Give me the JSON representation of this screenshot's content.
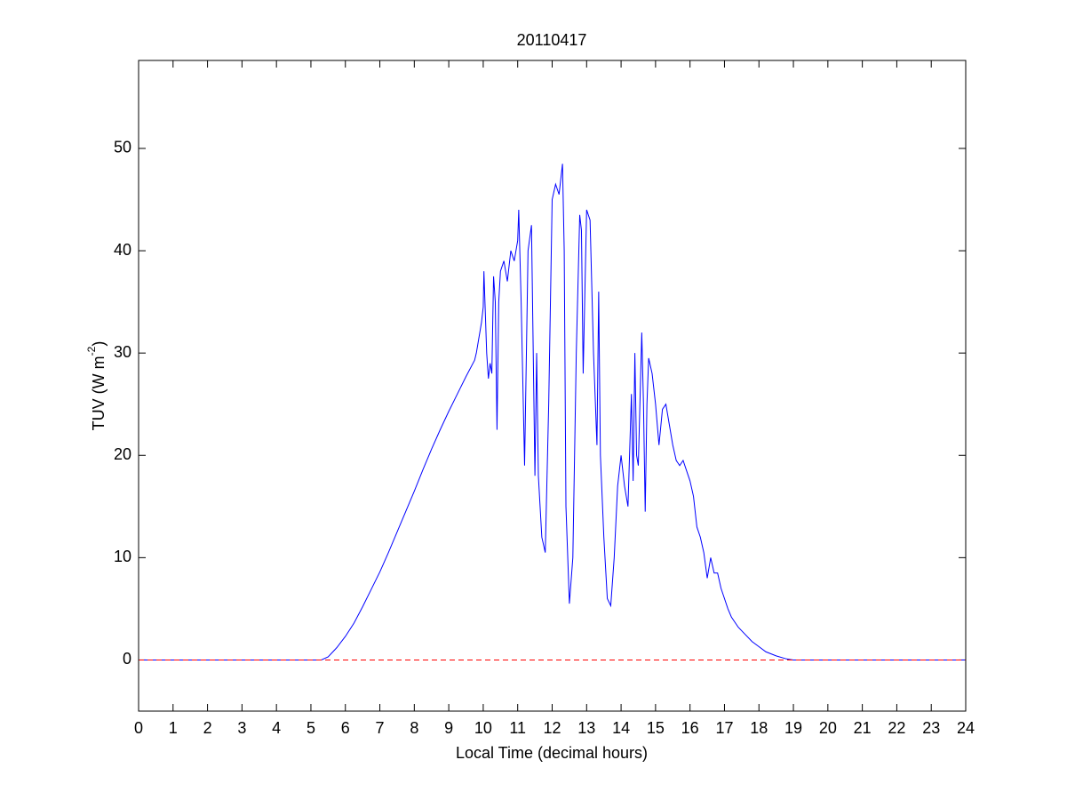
{
  "chart_data": {
    "type": "line",
    "title": "20110417",
    "xlabel": "Local Time (decimal hours)",
    "ylabel": {
      "text": "TUV (W m",
      "sup": "-2",
      "tail": ")"
    },
    "xlim": [
      0,
      24
    ],
    "ylim": [
      -5,
      58.6
    ],
    "xticks": [
      0,
      1,
      2,
      3,
      4,
      5,
      6,
      7,
      8,
      9,
      10,
      11,
      12,
      13,
      14,
      15,
      16,
      17,
      18,
      19,
      20,
      21,
      22,
      23,
      24
    ],
    "yticks": [
      0,
      10,
      20,
      30,
      40,
      50
    ],
    "reference_line": {
      "y": 0,
      "color": "#ff0000",
      "style": "dashed"
    },
    "series": [
      {
        "color": "#0000ff",
        "x": [
          0,
          5.3,
          5.5,
          5.75,
          6,
          6.25,
          6.5,
          6.75,
          7,
          7.25,
          7.5,
          7.75,
          8,
          8.25,
          8.5,
          8.75,
          9,
          9.25,
          9.5,
          9.75,
          9.8,
          9.9,
          9.95,
          10,
          10.02,
          10.06,
          10.1,
          10.15,
          10.2,
          10.25,
          10.3,
          10.35,
          10.4,
          10.45,
          10.5,
          10.6,
          10.7,
          10.8,
          10.9,
          11,
          11.03,
          11.1,
          11.2,
          11.3,
          11.4,
          11.5,
          11.55,
          11.6,
          11.7,
          11.8,
          11.9,
          12,
          12.1,
          12.2,
          12.3,
          12.35,
          12.4,
          12.5,
          12.6,
          12.7,
          12.8,
          12.85,
          12.9,
          13,
          13.1,
          13.2,
          13.3,
          13.35,
          13.4,
          13.5,
          13.6,
          13.7,
          13.8,
          13.9,
          14,
          14.1,
          14.2,
          14.3,
          14.35,
          14.4,
          14.45,
          14.5,
          14.6,
          14.65,
          14.7,
          14.75,
          14.8,
          14.9,
          15,
          15.1,
          15.2,
          15.3,
          15.4,
          15.5,
          15.6,
          15.7,
          15.8,
          15.9,
          16,
          16.1,
          16.2,
          16.3,
          16.4,
          16.5,
          16.6,
          16.7,
          16.8,
          16.9,
          17,
          17.1,
          17.2,
          17.4,
          17.6,
          17.8,
          18,
          18.2,
          18.5,
          18.8,
          19,
          24
        ],
        "values": [
          0,
          0,
          0.3,
          1.2,
          2.3,
          3.6,
          5.2,
          6.9,
          8.6,
          10.5,
          12.5,
          14.5,
          16.5,
          18.6,
          20.6,
          22.5,
          24.3,
          26,
          27.7,
          29.3,
          30,
          32,
          33,
          34.5,
          38,
          34,
          30,
          27.5,
          29,
          28,
          37.5,
          35,
          22.5,
          35,
          38,
          39,
          37,
          40,
          39,
          41,
          44,
          35,
          19,
          40,
          42.5,
          18,
          30,
          18,
          12,
          10.5,
          25,
          45,
          46.5,
          45.5,
          48.5,
          40,
          15,
          5.5,
          10,
          30,
          43.5,
          42,
          28,
          44,
          43,
          30,
          21,
          36,
          20,
          12,
          6,
          5.3,
          10,
          17,
          20,
          17,
          15,
          26,
          17.5,
          30,
          20,
          19,
          32,
          25,
          14.5,
          25,
          29.5,
          28,
          25,
          21,
          24.5,
          25,
          23,
          21,
          19.5,
          19,
          19.5,
          18.5,
          17.5,
          16,
          13,
          12,
          10.5,
          8,
          10,
          8.5,
          8.5,
          7,
          6,
          5,
          4.2,
          3.2,
          2.5,
          1.8,
          1.3,
          0.8,
          0.4,
          0.1,
          0,
          0
        ]
      }
    ]
  }
}
